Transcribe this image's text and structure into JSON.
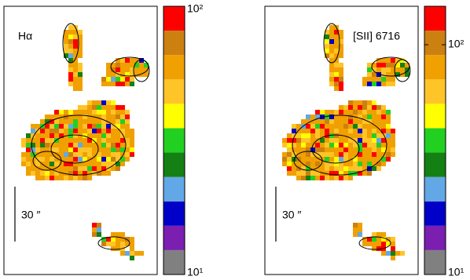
{
  "chart_data": [
    {
      "type": "heatmap",
      "label": "Hα",
      "scale_label": "30 ″",
      "log": true,
      "colors": [
        "#808080",
        "#7a1fb0",
        "#0000c8",
        "#63a8e6",
        "#148014",
        "#22d022",
        "#ffff00",
        "#ffc428",
        "#f0a000",
        "#cc8010",
        "#ff0000"
      ],
      "ylim": [
        10,
        100
      ],
      "yticks": [
        {
          "value": 10,
          "label": "10¹"
        },
        {
          "value": 100,
          "label": "10²"
        }
      ]
    },
    {
      "type": "heatmap",
      "label": "[SII] 6716",
      "scale_label": "30 ″",
      "log": true,
      "colors": [
        "#808080",
        "#7a1fb0",
        "#0000c8",
        "#63a8e6",
        "#148014",
        "#22d022",
        "#ffff00",
        "#ffc428",
        "#f0a000",
        "#cc8010",
        "#ff0000"
      ],
      "ylim": [
        10,
        147
      ],
      "yticks": [
        {
          "value": 10,
          "label": "10¹"
        },
        {
          "value": 100,
          "label": "10²"
        }
      ]
    }
  ]
}
